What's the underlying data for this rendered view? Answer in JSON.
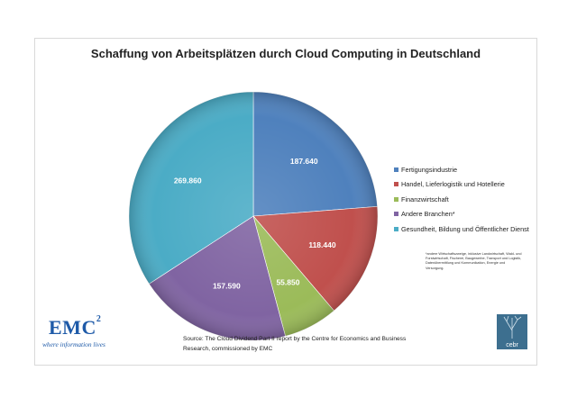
{
  "chart_data": {
    "type": "pie",
    "title": "Schaffung von Arbeitsplätzen durch Cloud Computing in Deutschland",
    "categories": [
      "Fertigungsindustrie",
      "Handel, Lieferlogistik und Hotellerie",
      "Finanzwirtschaft",
      "Andere Branchen*",
      "Gesundheit, Bildung und Öffentlicher Dienst"
    ],
    "values": [
      187640,
      118440,
      55850,
      157590,
      269860
    ],
    "data_labels": [
      "187.640",
      "118.440",
      "55.850",
      "157.590",
      "269.860"
    ],
    "colors": [
      "#4f81bd",
      "#c0504d",
      "#9bbb59",
      "#8064a2",
      "#4bacc6"
    ],
    "legend_position": "right"
  },
  "footnote": "*andere Wirtschaftszweige, inklusive Landwirtschaft, Wald- und Forstwirtschaft, Fischerei, Baugewerbe, Transport und Logistik, Datenübermittlung und Kommunikation, Energie und Versorgung.",
  "source": "Source: The Cloud Dividend Part II report by the Centre for Economics and Business Research, commissioned by EMC",
  "logos": {
    "emc_name": "EMC",
    "emc_superscript": "2",
    "emc_tagline": "where information lives",
    "cebr_name": "cebr"
  }
}
